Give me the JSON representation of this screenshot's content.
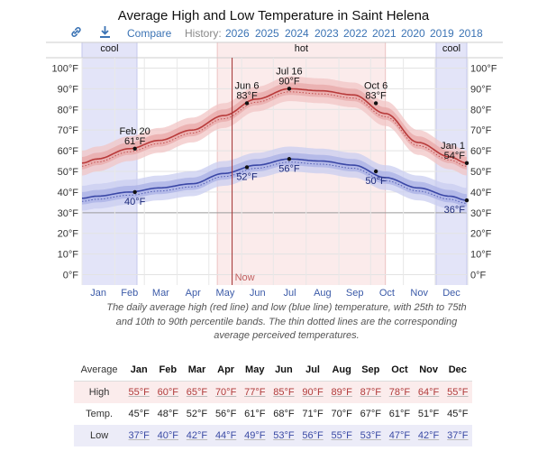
{
  "chart_data": {
    "type": "line",
    "title": "Average High and Low Temperature in Saint Helena",
    "x_ticks": [
      "Jan",
      "Feb",
      "Mar",
      "Apr",
      "May",
      "Jun",
      "Jul",
      "Aug",
      "Sep",
      "Oct",
      "Nov",
      "Dec"
    ],
    "y_ticks": [
      "0°F",
      "10°F",
      "20°F",
      "30°F",
      "40°F",
      "50°F",
      "60°F",
      "70°F",
      "80°F",
      "90°F",
      "100°F"
    ],
    "ylim": [
      -5,
      105
    ],
    "grid": true,
    "season_bands": [
      {
        "label": "cool",
        "start_day": 1,
        "end_day": 53,
        "color": "#d4d6f4"
      },
      {
        "label": "hot",
        "start_day": 129,
        "end_day": 288,
        "color": "#f7dada"
      },
      {
        "label": "cool",
        "start_day": 336,
        "end_day": 365,
        "color": "#d4d6f4"
      }
    ],
    "now_day": 143,
    "now_label": "Now",
    "series": [
      {
        "name": "High",
        "color": "#b83a3a",
        "x": [
          1,
          15,
          46,
          74,
          105,
          135,
          166,
          197,
          227,
          258,
          288,
          319,
          349,
          365
        ],
        "values": [
          54,
          56,
          61,
          65,
          70,
          77,
          85,
          90,
          89,
          87,
          78,
          64,
          57,
          54
        ]
      },
      {
        "name": "Low",
        "color": "#3a47a6",
        "x": [
          1,
          15,
          46,
          74,
          105,
          135,
          166,
          197,
          227,
          258,
          288,
          319,
          349,
          365
        ],
        "values": [
          37,
          38,
          40,
          42,
          44,
          49,
          53,
          56,
          55,
          53,
          47,
          42,
          38,
          36
        ]
      }
    ],
    "annotations": [
      {
        "series": "High",
        "day": 51,
        "value": 61,
        "label_top": "Feb 20",
        "label_val": "61°F",
        "pos": "above"
      },
      {
        "series": "High",
        "day": 157,
        "value": 83,
        "label_top": "Jun 6",
        "label_val": "83°F",
        "pos": "above"
      },
      {
        "series": "High",
        "day": 197,
        "value": 90,
        "label_top": "Jul 16",
        "label_val": "90°F",
        "pos": "above"
      },
      {
        "series": "High",
        "day": 279,
        "value": 83,
        "label_top": "Oct 6",
        "label_val": "83°F",
        "pos": "above"
      },
      {
        "series": "High",
        "day": 365,
        "value": 54,
        "label_top": "Jan 1",
        "label_val": "54°F",
        "pos": "above-left"
      },
      {
        "series": "Low",
        "day": 51,
        "value": 40,
        "label_top": "",
        "label_val": "40°F",
        "pos": "below"
      },
      {
        "series": "Low",
        "day": 157,
        "value": 52,
        "label_top": "",
        "label_val": "52°F",
        "pos": "below"
      },
      {
        "series": "Low",
        "day": 197,
        "value": 56,
        "label_top": "",
        "label_val": "56°F",
        "pos": "below"
      },
      {
        "series": "Low",
        "day": 279,
        "value": 50,
        "label_top": "",
        "label_val": "50°F",
        "pos": "below"
      },
      {
        "series": "Low",
        "day": 365,
        "value": 36,
        "label_top": "",
        "label_val": "36°F",
        "pos": "below-left"
      }
    ]
  },
  "toolbar": {
    "compare_label": "Compare",
    "history_label": "History:",
    "years": [
      "2026",
      "2025",
      "2024",
      "2023",
      "2022",
      "2021",
      "2020",
      "2019",
      "2018"
    ],
    "link_icon": "link-icon",
    "download_icon": "download-icon"
  },
  "caption": "The daily average high (red line) and low (blue line) temperature, with 25th to 75th and 10th to 90th percentile bands. The thin dotted lines are the corresponding average perceived temperatures.",
  "table": {
    "header_label": "Average",
    "months": [
      "Jan",
      "Feb",
      "Mar",
      "Apr",
      "May",
      "Jun",
      "Jul",
      "Aug",
      "Sep",
      "Oct",
      "Nov",
      "Dec"
    ],
    "rows": [
      {
        "label": "High",
        "cls": "high",
        "values": [
          "55°F",
          "60°F",
          "65°F",
          "70°F",
          "77°F",
          "85°F",
          "90°F",
          "89°F",
          "87°F",
          "78°F",
          "64°F",
          "55°F"
        ]
      },
      {
        "label": "Temp.",
        "cls": "temp",
        "values": [
          "45°F",
          "48°F",
          "52°F",
          "56°F",
          "61°F",
          "68°F",
          "71°F",
          "70°F",
          "67°F",
          "61°F",
          "51°F",
          "45°F"
        ]
      },
      {
        "label": "Low",
        "cls": "low",
        "values": [
          "37°F",
          "40°F",
          "42°F",
          "44°F",
          "49°F",
          "53°F",
          "56°F",
          "55°F",
          "53°F",
          "47°F",
          "42°F",
          "37°F"
        ]
      }
    ]
  }
}
